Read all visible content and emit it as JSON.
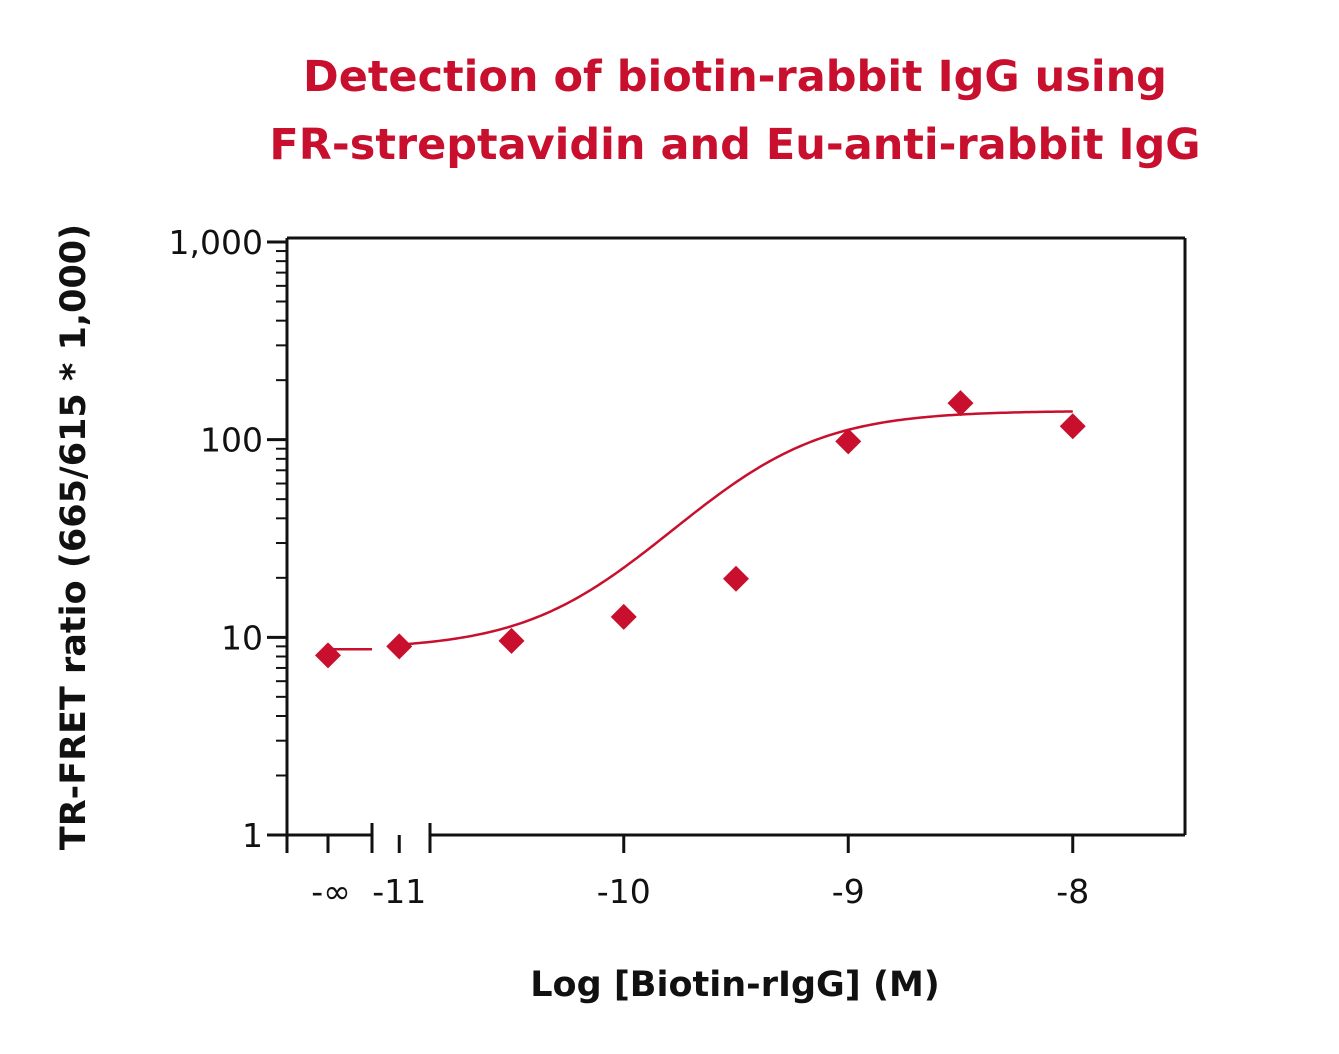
{
  "chart_data": {
    "type": "scatter",
    "title_lines": [
      "Detection of biotin-rabbit IgG using",
      "FR-streptavidin and Eu-anti-rabbit IgG"
    ],
    "xlabel": "Log [Biotin-rIgG] (M)",
    "ylabel": "TR-FRET ratio (665/615 * 1,000)",
    "yscale": "log",
    "ylim": [
      1,
      1000
    ],
    "xlim": [
      -11.5,
      -7.5
    ],
    "y_ticks": [
      {
        "value": 1,
        "label": "1"
      },
      {
        "value": 10,
        "label": "10"
      },
      {
        "value": 100,
        "label": "100"
      },
      {
        "value": 1000,
        "label": "1,000"
      }
    ],
    "x_ticks": [
      {
        "value": -11,
        "label": "-11"
      },
      {
        "value": -10,
        "label": "-10"
      },
      {
        "value": -9,
        "label": "-9"
      },
      {
        "value": -8,
        "label": "-8"
      }
    ],
    "zero_point": {
      "label": "-∞",
      "y": 8.1
    },
    "points": [
      {
        "x": -11,
        "y": 9.0
      },
      {
        "x": -10.5,
        "y": 9.6
      },
      {
        "x": -10,
        "y": 12.7
      },
      {
        "x": -9.5,
        "y": 19.8
      },
      {
        "x": -9,
        "y": 98
      },
      {
        "x": -8.5,
        "y": 153
      },
      {
        "x": -8,
        "y": 117
      }
    ],
    "fit": {
      "bottom": 8.7,
      "top": 140,
      "logEC50": -9.38,
      "hill": 1.5,
      "range": [
        -11,
        -8
      ]
    },
    "marker": "diamond",
    "color": "#c8102e"
  }
}
